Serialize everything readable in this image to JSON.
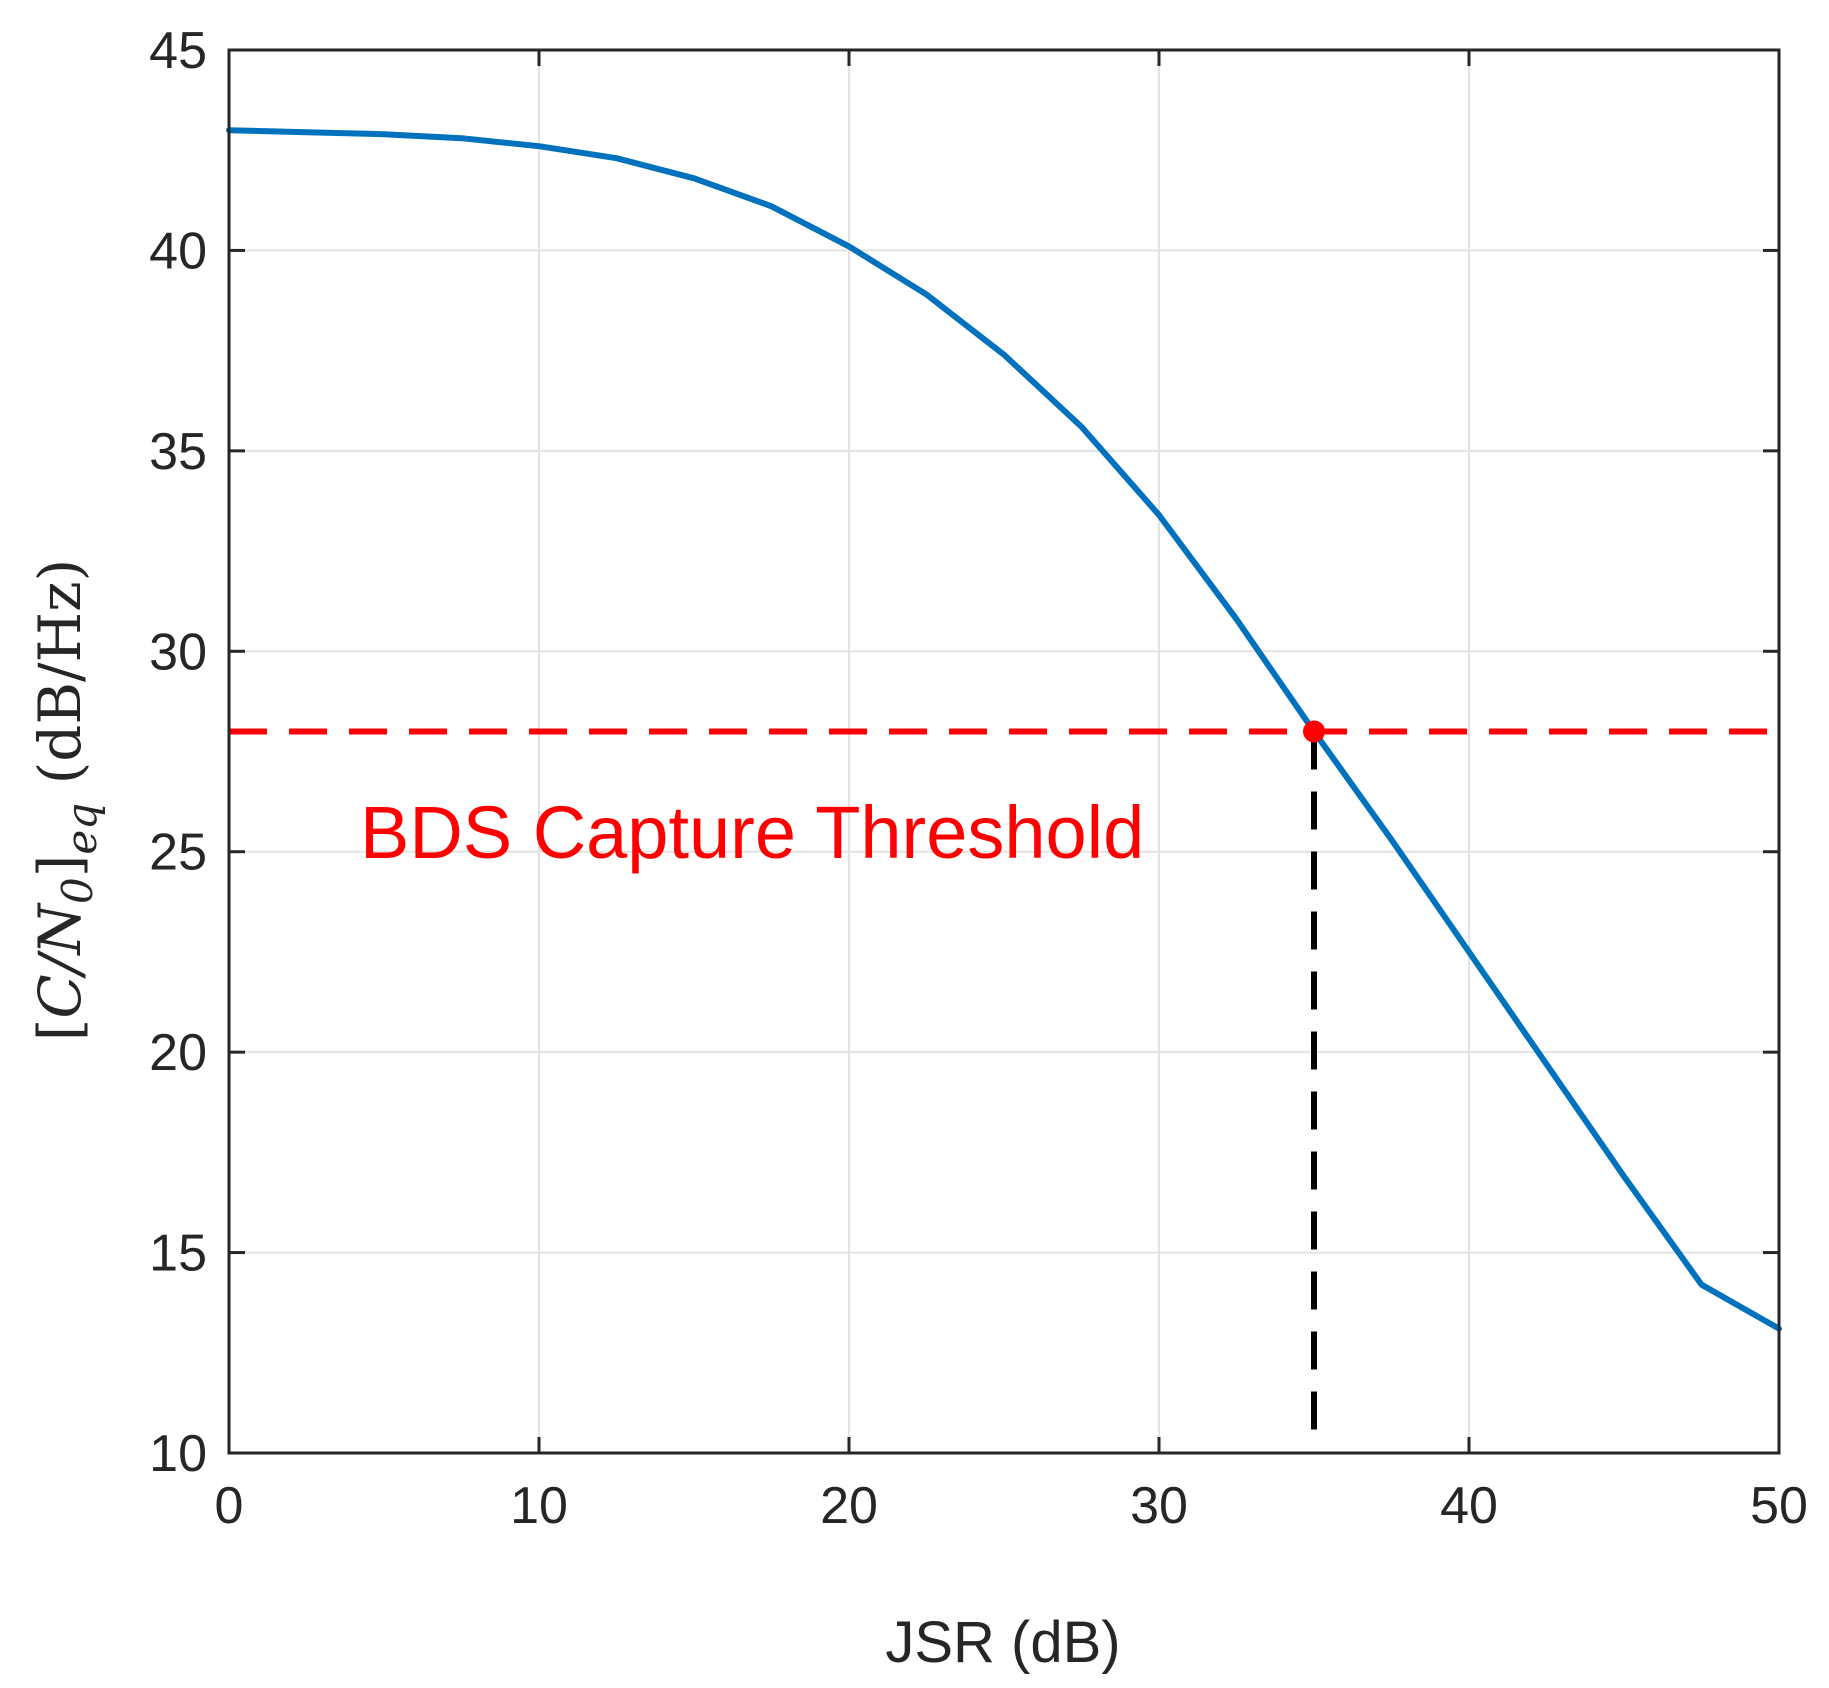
{
  "chart_data": {
    "type": "line",
    "xlabel": "JSR (dB)",
    "ylabel": {
      "open": "[",
      "C": "C",
      "slash": "/",
      "N": "N",
      "zero": "0",
      "close": "]",
      "sub": "eq",
      "units": " (dB/Hz)"
    },
    "xlim": [
      0,
      50
    ],
    "ylim": [
      10,
      45
    ],
    "xticks": [
      "0",
      "10",
      "20",
      "30",
      "40",
      "50"
    ],
    "yticks": [
      "10",
      "15",
      "20",
      "25",
      "30",
      "35",
      "40",
      "45"
    ],
    "grid": true,
    "series": [
      {
        "color": "#0072bd",
        "x": [
          0,
          2.5,
          5,
          7.5,
          10,
          12.5,
          15,
          17.5,
          20,
          22.5,
          25,
          27.5,
          30,
          32.5,
          35,
          37.5,
          40,
          42.5,
          45,
          47.5,
          50
        ],
        "y": [
          43.0,
          42.95,
          42.9,
          42.8,
          42.6,
          42.3,
          41.8,
          41.1,
          40.1,
          38.9,
          37.4,
          35.6,
          33.4,
          30.8,
          28.0,
          25.3,
          22.5,
          19.7,
          16.9,
          14.2,
          13.1
        ]
      }
    ],
    "threshold": {
      "y": 28,
      "color": "#ff0000",
      "style": "dashed"
    },
    "intersection": {
      "x": 35,
      "y": 28,
      "color": "#ff0000"
    },
    "vline": {
      "x": 35,
      "color": "#000000",
      "style": "dashed"
    },
    "annotation": {
      "text": "BDS Capture Threshold",
      "color": "#ff0000"
    }
  }
}
